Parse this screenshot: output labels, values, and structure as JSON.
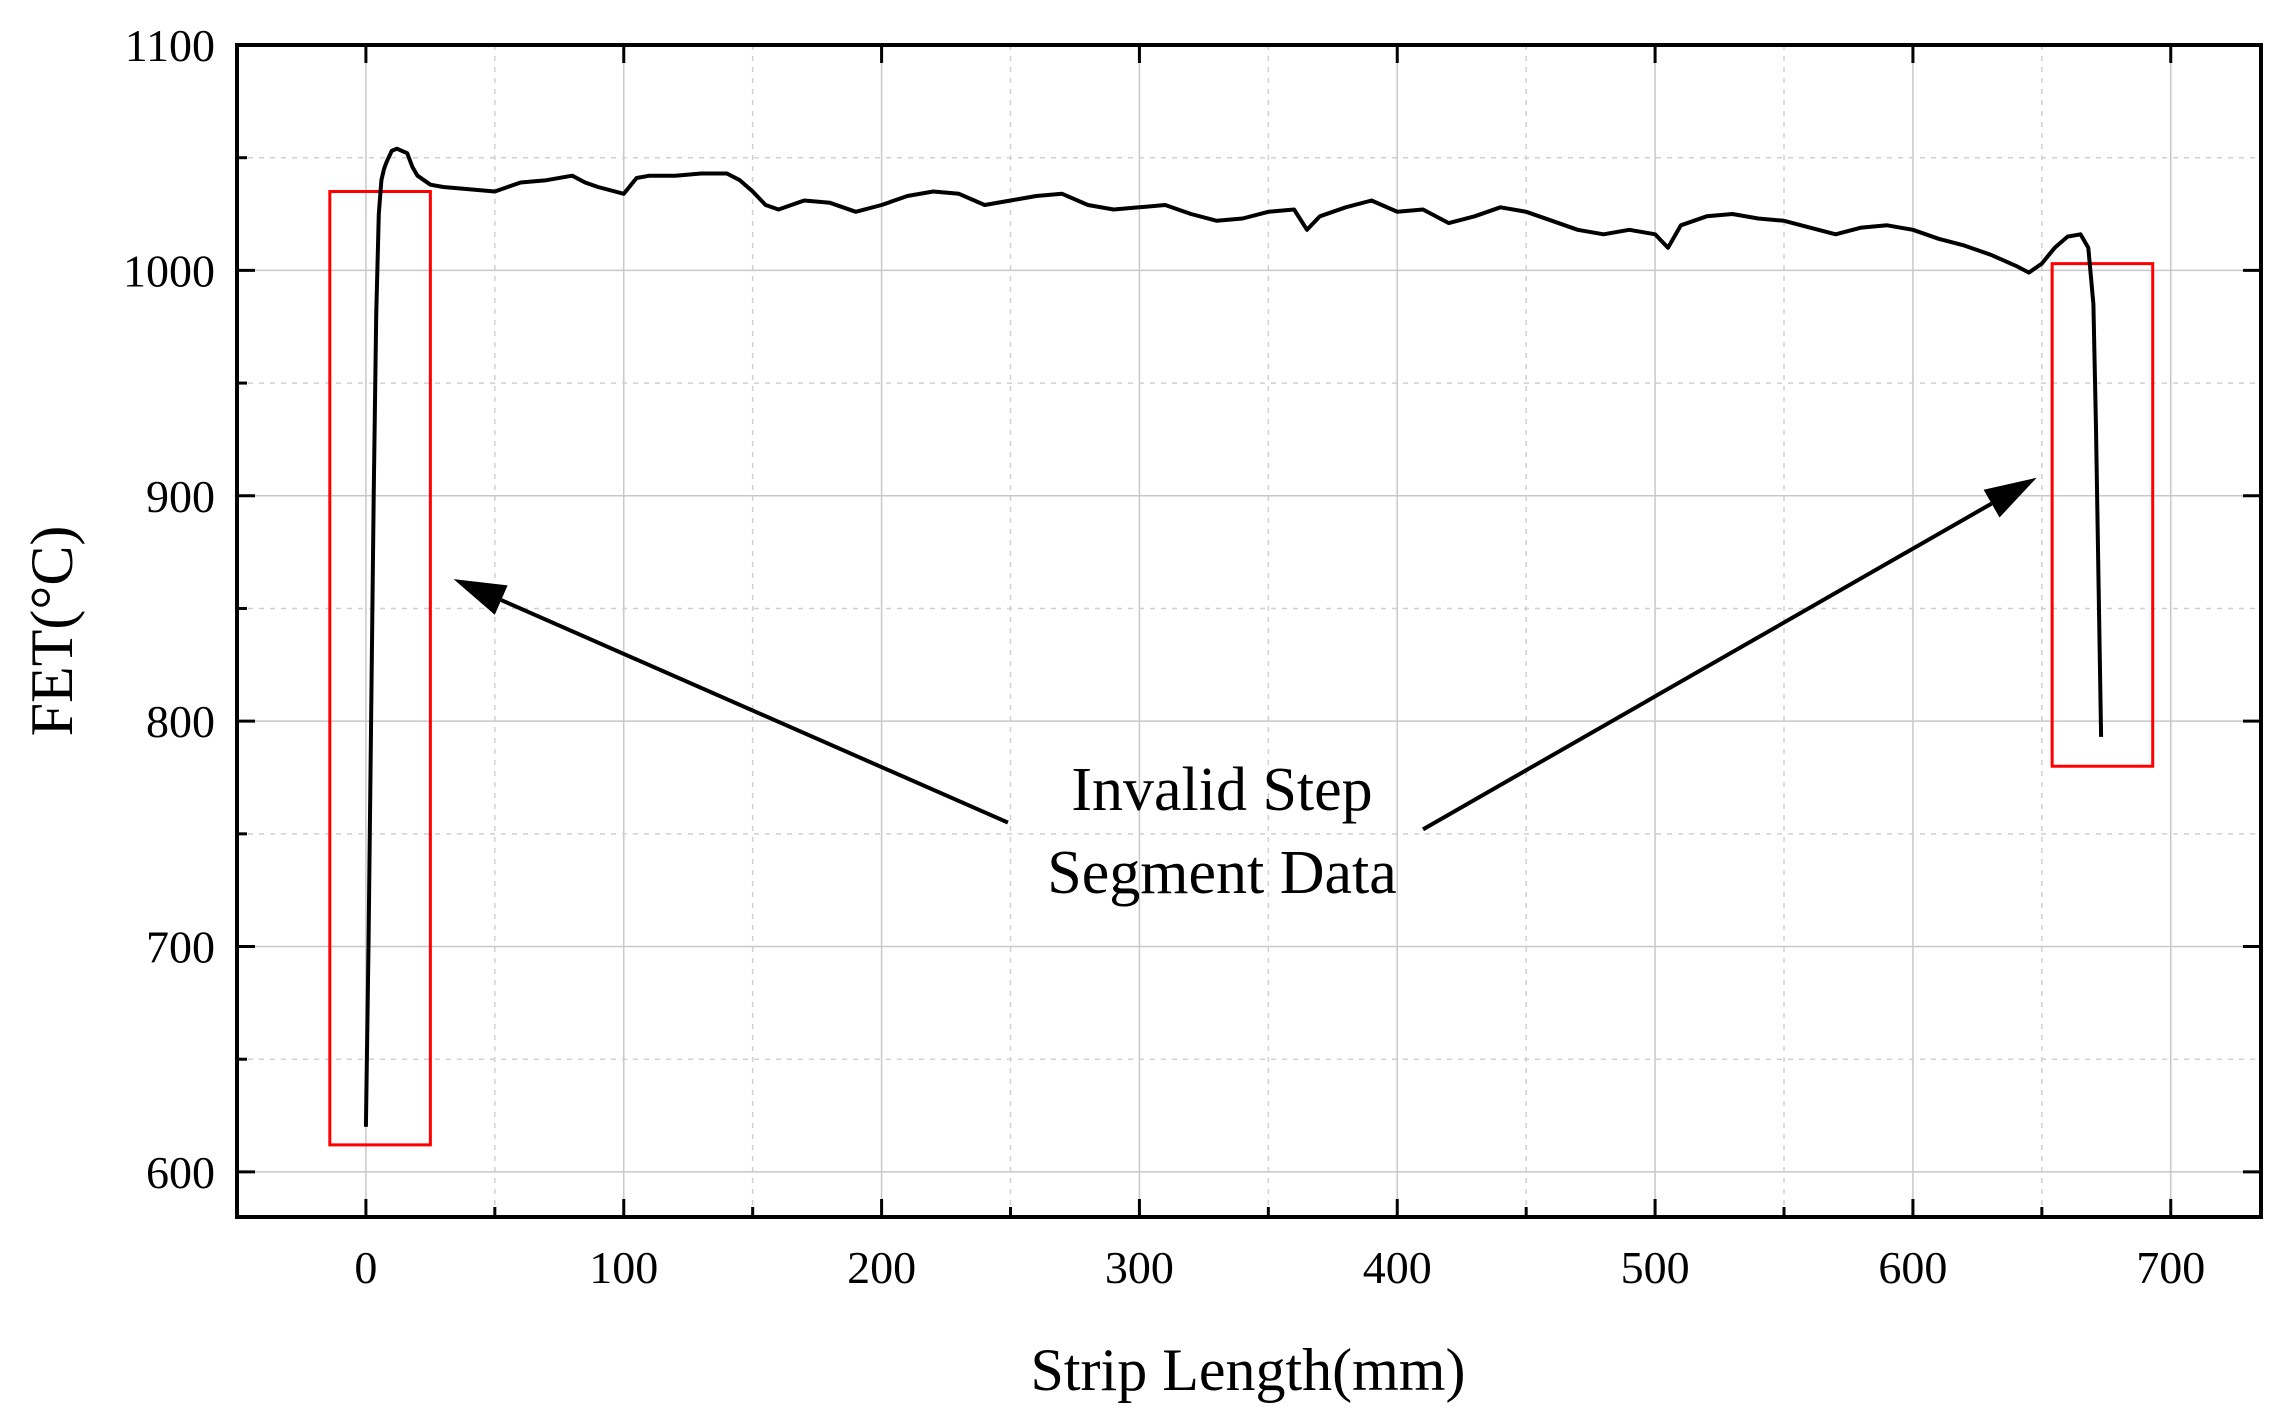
{
  "chart_data": {
    "type": "line",
    "title": "",
    "xlabel": "Strip Length(mm)",
    "ylabel": "FET(°C)",
    "xlim": [
      -50,
      735
    ],
    "ylim": [
      580,
      1100
    ],
    "xticks": [
      0,
      100,
      200,
      300,
      400,
      500,
      600,
      700
    ],
    "xtick_labels": [
      "0",
      "100",
      "200",
      "300",
      "400",
      "500",
      "600",
      "700"
    ],
    "yticks": [
      600,
      700,
      800,
      900,
      1000,
      1100
    ],
    "ytick_labels": [
      "600",
      "700",
      "800",
      "900",
      "1000",
      "1100"
    ],
    "grid": true,
    "legend": "none",
    "series": [
      {
        "name": "FET",
        "color": "#000000",
        "x": [
          0,
          1,
          2,
          3,
          4,
          5,
          6,
          7,
          8,
          10,
          12,
          14,
          16,
          18,
          20,
          25,
          30,
          40,
          50,
          55,
          60,
          70,
          80,
          85,
          90,
          100,
          105,
          110,
          120,
          130,
          140,
          145,
          150,
          155,
          160,
          170,
          180,
          190,
          200,
          210,
          220,
          230,
          240,
          250,
          260,
          270,
          280,
          290,
          300,
          310,
          320,
          330,
          340,
          350,
          360,
          365,
          370,
          380,
          390,
          400,
          410,
          420,
          430,
          440,
          450,
          460,
          470,
          480,
          490,
          500,
          505,
          510,
          520,
          530,
          540,
          550,
          560,
          570,
          580,
          590,
          600,
          610,
          620,
          630,
          640,
          645,
          650,
          655,
          660,
          665,
          668,
          670,
          671,
          672,
          673
        ],
        "y": [
          620,
          700,
          800,
          900,
          980,
          1025,
          1040,
          1045,
          1048,
          1053,
          1054,
          1053,
          1052,
          1046,
          1042,
          1038,
          1037,
          1036,
          1035,
          1037,
          1039,
          1040,
          1042,
          1039,
          1037,
          1034,
          1041,
          1042,
          1042,
          1043,
          1043,
          1040,
          1035,
          1029,
          1027,
          1031,
          1030,
          1026,
          1029,
          1033,
          1035,
          1034,
          1029,
          1031,
          1033,
          1034,
          1029,
          1027,
          1028,
          1029,
          1025,
          1022,
          1023,
          1026,
          1027,
          1018,
          1024,
          1028,
          1031,
          1026,
          1027,
          1021,
          1024,
          1028,
          1026,
          1022,
          1018,
          1016,
          1018,
          1016,
          1010,
          1020,
          1024,
          1025,
          1023,
          1022,
          1019,
          1016,
          1019,
          1020,
          1018,
          1014,
          1011,
          1007,
          1002,
          999,
          1003,
          1010,
          1015,
          1016,
          1010,
          985,
          930,
          860,
          793
        ]
      }
    ],
    "highlight_boxes": [
      {
        "x_range": [
          -14,
          25
        ],
        "y_range": [
          612,
          1035
        ],
        "color": "#ff0000"
      },
      {
        "x_range": [
          654,
          693
        ],
        "y_range": [
          780,
          1003
        ],
        "color": "#ff0000"
      }
    ],
    "annotations": [
      {
        "lines": [
          "Invalid Step",
          "Segment Data"
        ],
        "arrows": [
          {
            "from": [
              249,
              755
            ],
            "to": [
              34,
              863
            ]
          },
          {
            "from": [
              410,
              752
            ],
            "to": [
              648,
              908
            ]
          }
        ]
      }
    ]
  }
}
